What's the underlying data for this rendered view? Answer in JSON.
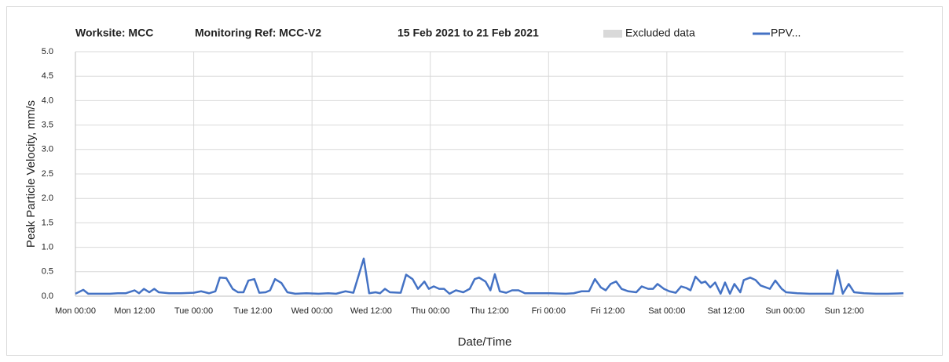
{
  "chart_data": {
    "type": "line",
    "title": [
      "Worksite: MCC",
      "Monitoring Ref: MCC-V2",
      "15 Feb 2021 to 21 Feb 2021"
    ],
    "x_label": "Date/Time",
    "y_label": "Peak Particle Velocity, mm/s",
    "excluded": {
      "name": "Excluded data",
      "color": "#d9d9d9"
    },
    "x": [
      0,
      1.6,
      2.6,
      4.6,
      7.0,
      8.6,
      10.2,
      12.0,
      12.9,
      13.9,
      15.0,
      16.0,
      16.9,
      19.0,
      21.4,
      24.0,
      25.5,
      27.1,
      28.4,
      29.3,
      30.6,
      31.9,
      33.0,
      34.1,
      35.1,
      36.3,
      37.3,
      38.6,
      39.5,
      40.5,
      41.8,
      43.0,
      44.6,
      46.9,
      49.3,
      51.3,
      52.9,
      54.8,
      56.4,
      58.5,
      59.6,
      60.9,
      61.8,
      62.8,
      63.8,
      66.0,
      67.1,
      68.4,
      69.5,
      70.8,
      71.7,
      72.7,
      73.8,
      74.8,
      75.9,
      77.2,
      78.7,
      80.0,
      81.0,
      81.9,
      83.2,
      84.2,
      85.1,
      86.1,
      87.4,
      88.6,
      89.9,
      91.2,
      93.1,
      96.3,
      99.5,
      101.1,
      102.7,
      104.2,
      105.4,
      106.6,
      107.6,
      108.6,
      109.7,
      110.8,
      112.2,
      113.8,
      114.9,
      116.2,
      117.2,
      118.1,
      119.4,
      120.5,
      121.8,
      122.9,
      123.9,
      124.8,
      125.8,
      127.0,
      127.8,
      128.8,
      129.8,
      130.9,
      131.8,
      132.8,
      133.7,
      134.9,
      135.6,
      136.9,
      138.0,
      139.0,
      140.1,
      140.9,
      142.0,
      143.3,
      144.2,
      146.5,
      148.9,
      151.3,
      153.7,
      154.6,
      155.7,
      156.9,
      158.0,
      160.0,
      162.4,
      164.8,
      168.0
    ],
    "series": [
      {
        "name": "PPV...",
        "color": "#4472c4",
        "values": [
          0.05,
          0.13,
          0.05,
          0.05,
          0.05,
          0.06,
          0.06,
          0.12,
          0.06,
          0.15,
          0.08,
          0.15,
          0.08,
          0.06,
          0.06,
          0.07,
          0.1,
          0.06,
          0.1,
          0.38,
          0.37,
          0.15,
          0.08,
          0.08,
          0.32,
          0.35,
          0.07,
          0.08,
          0.12,
          0.35,
          0.27,
          0.08,
          0.05,
          0.06,
          0.05,
          0.06,
          0.05,
          0.1,
          0.07,
          0.77,
          0.06,
          0.08,
          0.06,
          0.15,
          0.08,
          0.07,
          0.44,
          0.35,
          0.15,
          0.3,
          0.15,
          0.2,
          0.15,
          0.15,
          0.05,
          0.12,
          0.08,
          0.15,
          0.35,
          0.38,
          0.3,
          0.12,
          0.45,
          0.1,
          0.07,
          0.12,
          0.12,
          0.06,
          0.06,
          0.06,
          0.05,
          0.06,
          0.1,
          0.1,
          0.35,
          0.18,
          0.12,
          0.25,
          0.3,
          0.15,
          0.1,
          0.08,
          0.2,
          0.15,
          0.15,
          0.25,
          0.15,
          0.1,
          0.07,
          0.2,
          0.17,
          0.12,
          0.4,
          0.27,
          0.3,
          0.18,
          0.28,
          0.05,
          0.28,
          0.05,
          0.25,
          0.08,
          0.33,
          0.38,
          0.33,
          0.22,
          0.18,
          0.15,
          0.32,
          0.15,
          0.08,
          0.06,
          0.05,
          0.05,
          0.05,
          0.53,
          0.05,
          0.25,
          0.08,
          0.06,
          0.05,
          0.05,
          0.06
        ]
      }
    ],
    "xlim": [
      0,
      168
    ],
    "xticks": [
      {
        "value": 0,
        "label": "Mon 00:00"
      },
      {
        "value": 12,
        "label": "Mon 12:00"
      },
      {
        "value": 24,
        "label": "Tue 00:00"
      },
      {
        "value": 36,
        "label": "Tue 12:00"
      },
      {
        "value": 48,
        "label": "Wed 00:00"
      },
      {
        "value": 60,
        "label": "Wed 12:00"
      },
      {
        "value": 72,
        "label": "Thu 00:00"
      },
      {
        "value": 84,
        "label": "Thu 12:00"
      },
      {
        "value": 96,
        "label": "Fri 00:00"
      },
      {
        "value": 108,
        "label": "Fri 12:00"
      },
      {
        "value": 120,
        "label": "Sat 00:00"
      },
      {
        "value": 132,
        "label": "Sat 12:00"
      },
      {
        "value": 144,
        "label": "Sun 00:00"
      },
      {
        "value": 156,
        "label": "Sun 12:00"
      }
    ],
    "ylim": [
      0,
      5
    ],
    "yticks": [
      {
        "value": 0,
        "label": "0.0"
      },
      {
        "value": 0.5,
        "label": "0.5"
      },
      {
        "value": 1,
        "label": "1.0"
      },
      {
        "value": 1.5,
        "label": "1.5"
      },
      {
        "value": 2,
        "label": "2.0"
      },
      {
        "value": 2.5,
        "label": "2.5"
      },
      {
        "value": 3,
        "label": "3.0"
      },
      {
        "value": 3.5,
        "label": "3.5"
      },
      {
        "value": 4,
        "label": "4.0"
      },
      {
        "value": 4.5,
        "label": "4.5"
      },
      {
        "value": 5,
        "label": "5.0"
      }
    ],
    "grid": true
  }
}
